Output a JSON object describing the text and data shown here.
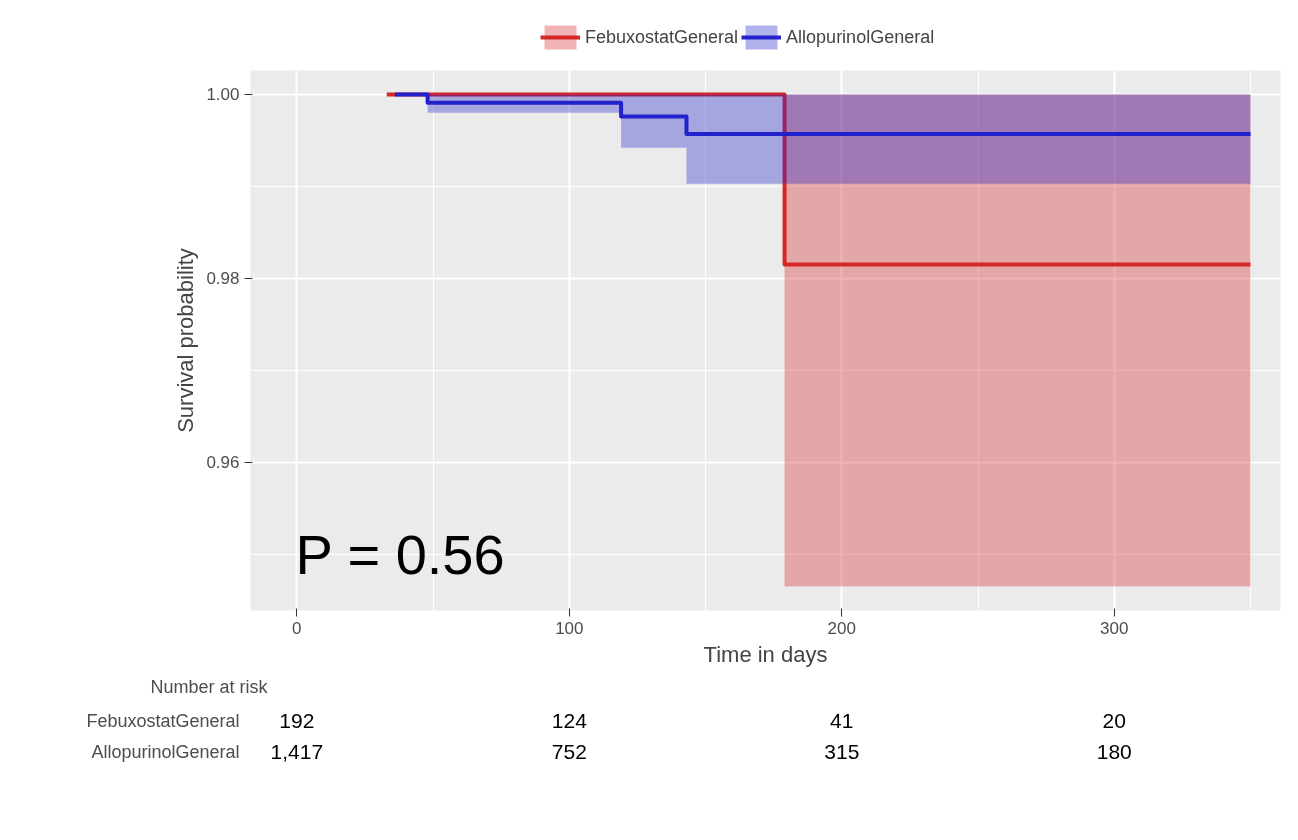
{
  "chart_data": [
    {
      "type": "step",
      "xlabel": "Time in days",
      "ylabel": "Survival probability",
      "xlim": [
        -17,
        361
      ],
      "ylim": [
        0.9439,
        1.0026
      ],
      "xticks": [
        0,
        100,
        200,
        300
      ],
      "yticks": [
        {
          "value": 0.96,
          "label": "0.96"
        },
        {
          "value": 0.98,
          "label": "0.98"
        },
        {
          "value": 1,
          "label": "1.00"
        }
      ],
      "grid": true,
      "legend": "top",
      "line_style": "solid",
      "marker": "none",
      "series": [
        {
          "name": "FebuxostatGeneral",
          "color": "#d62728",
          "x": [
            33,
            179,
            350
          ],
          "values": [
            1.0,
            0.9815,
            0.9815
          ],
          "lower": [
            1.0,
            0.9465,
            0.9465
          ],
          "upper": [
            1.0,
            1.0,
            1.0
          ]
        },
        {
          "name": "AllopurinolGeneral",
          "color": "#2222cc",
          "x": [
            36,
            48,
            119,
            143,
            350
          ],
          "values": [
            1.0,
            0.9991,
            0.9976,
            0.9957,
            0.9957
          ],
          "lower": [
            1.0,
            0.998,
            0.9942,
            0.9903,
            0.9903
          ],
          "upper": [
            1.0,
            1.0,
            1.0,
            1.0,
            1.0
          ]
        }
      ],
      "annotations": [
        "P = 0.56"
      ]
    },
    {
      "type": "other",
      "title": "Number at risk",
      "y_categories": [
        "FebuxostatGeneral",
        "AllopurinolGeneral"
      ],
      "cell_labels": [
        [
          "192",
          "124",
          "41",
          "20"
        ],
        [
          "1,417",
          "752",
          "315",
          "180"
        ]
      ]
    }
  ]
}
